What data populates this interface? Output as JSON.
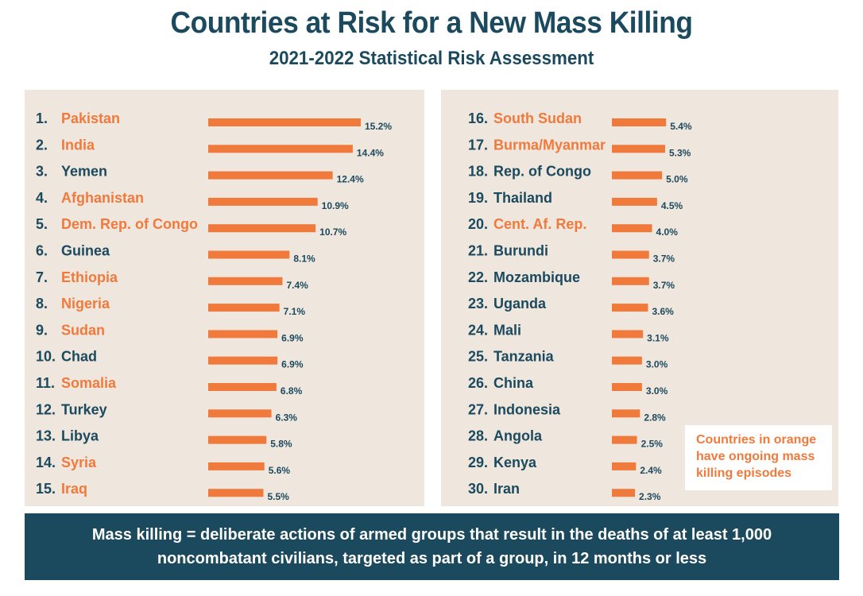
{
  "colors": {
    "accent": "#f07a3c",
    "navy": "#1b4a5e",
    "panel": "#efe6dd"
  },
  "legend_note": "Countries in orange have ongoing mass killing episodes",
  "footer_line1": "Mass killing = deliberate actions of armed groups that result in the deaths of at least 1,000",
  "footer_line2": "noncombatant civilians, targeted as part of a group, in 12 months or less",
  "chart_data": {
    "type": "bar",
    "orientation": "horizontal",
    "title": "Countries at Risk for a New Mass Killing",
    "subtitle": "2021-2022 Statistical Risk Assessment",
    "value_unit": "%",
    "xlim": [
      0,
      15.2
    ],
    "items": [
      {
        "rank": "1.",
        "country": "Pakistan",
        "value": 15.2,
        "label": "15.2%",
        "ongoing": true
      },
      {
        "rank": "2.",
        "country": "India",
        "value": 14.4,
        "label": "14.4%",
        "ongoing": true
      },
      {
        "rank": "3.",
        "country": "Yemen",
        "value": 12.4,
        "label": "12.4%",
        "ongoing": false
      },
      {
        "rank": "4.",
        "country": "Afghanistan",
        "value": 10.9,
        "label": "10.9%",
        "ongoing": true
      },
      {
        "rank": "5.",
        "country": "Dem. Rep. of Congo",
        "value": 10.7,
        "label": "10.7%",
        "ongoing": true
      },
      {
        "rank": "6.",
        "country": "Guinea",
        "value": 8.1,
        "label": "8.1%",
        "ongoing": false
      },
      {
        "rank": "7.",
        "country": "Ethiopia",
        "value": 7.4,
        "label": "7.4%",
        "ongoing": true
      },
      {
        "rank": "8.",
        "country": "Nigeria",
        "value": 7.1,
        "label": "7.1%",
        "ongoing": true
      },
      {
        "rank": "9.",
        "country": "Sudan",
        "value": 6.9,
        "label": "6.9%",
        "ongoing": true
      },
      {
        "rank": "10.",
        "country": "Chad",
        "value": 6.9,
        "label": "6.9%",
        "ongoing": false
      },
      {
        "rank": "11.",
        "country": "Somalia",
        "value": 6.8,
        "label": "6.8%",
        "ongoing": true
      },
      {
        "rank": "12.",
        "country": "Turkey",
        "value": 6.3,
        "label": "6.3%",
        "ongoing": false
      },
      {
        "rank": "13.",
        "country": "Libya",
        "value": 5.8,
        "label": "5.8%",
        "ongoing": false
      },
      {
        "rank": "14.",
        "country": "Syria",
        "value": 5.6,
        "label": "5.6%",
        "ongoing": true
      },
      {
        "rank": "15.",
        "country": "Iraq",
        "value": 5.5,
        "label": "5.5%",
        "ongoing": true
      },
      {
        "rank": "16.",
        "country": "South Sudan",
        "value": 5.4,
        "label": "5.4%",
        "ongoing": true
      },
      {
        "rank": "17.",
        "country": "Burma/Myanmar",
        "value": 5.3,
        "label": "5.3%",
        "ongoing": true
      },
      {
        "rank": "18.",
        "country": "Rep. of Congo",
        "value": 5.0,
        "label": "5.0%",
        "ongoing": false
      },
      {
        "rank": "19.",
        "country": "Thailand",
        "value": 4.5,
        "label": "4.5%",
        "ongoing": false
      },
      {
        "rank": "20.",
        "country": "Cent. Af. Rep.",
        "value": 4.0,
        "label": "4.0%",
        "ongoing": true
      },
      {
        "rank": "21.",
        "country": "Burundi",
        "value": 3.7,
        "label": "3.7%",
        "ongoing": false
      },
      {
        "rank": "22.",
        "country": "Mozambique",
        "value": 3.7,
        "label": "3.7%",
        "ongoing": false
      },
      {
        "rank": "23.",
        "country": "Uganda",
        "value": 3.6,
        "label": "3.6%",
        "ongoing": false
      },
      {
        "rank": "24.",
        "country": "Mali",
        "value": 3.1,
        "label": "3.1%",
        "ongoing": false
      },
      {
        "rank": "25.",
        "country": "Tanzania",
        "value": 3.0,
        "label": "3.0%",
        "ongoing": false
      },
      {
        "rank": "26.",
        "country": "China",
        "value": 3.0,
        "label": "3.0%",
        "ongoing": false
      },
      {
        "rank": "27.",
        "country": "Indonesia",
        "value": 2.8,
        "label": "2.8%",
        "ongoing": false
      },
      {
        "rank": "28.",
        "country": "Angola",
        "value": 2.5,
        "label": "2.5%",
        "ongoing": false
      },
      {
        "rank": "29.",
        "country": "Kenya",
        "value": 2.4,
        "label": "2.4%",
        "ongoing": false
      },
      {
        "rank": "30.",
        "country": "Iran",
        "value": 2.3,
        "label": "2.3%",
        "ongoing": false
      }
    ]
  }
}
